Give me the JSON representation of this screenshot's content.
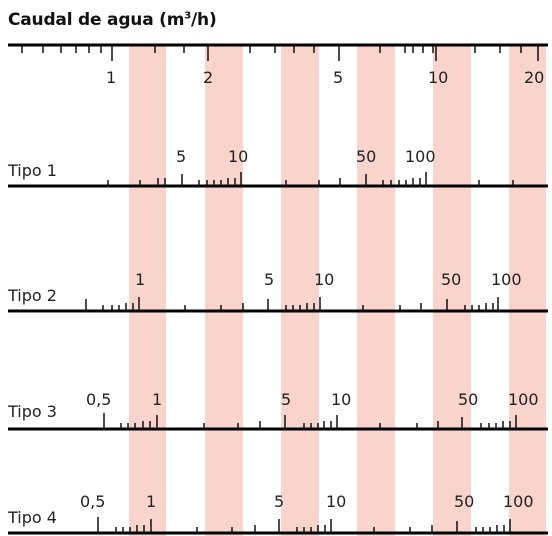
{
  "title": {
    "prefix": "Caudal de agua (m",
    "sup": "3",
    "suffix": "/h)"
  },
  "colors": {
    "band": "#f9d4cc",
    "line": "#000000",
    "text": "#222222"
  },
  "top_scale": {
    "labels": [
      "1",
      "2",
      "5",
      "10",
      "20"
    ]
  },
  "rows": [
    {
      "name": "Tipo 1",
      "labels": [
        "5",
        "10",
        "50",
        "100"
      ]
    },
    {
      "name": "Tipo 2",
      "labels": [
        "1",
        "5",
        "10",
        "50",
        "100"
      ]
    },
    {
      "name": "Tipo 3",
      "labels": [
        "0,5",
        "1",
        "5",
        "10",
        "50",
        "100"
      ]
    },
    {
      "name": "Tipo 4",
      "labels": [
        "0,5",
        "1",
        "5",
        "10",
        "50",
        "100"
      ]
    }
  ]
}
